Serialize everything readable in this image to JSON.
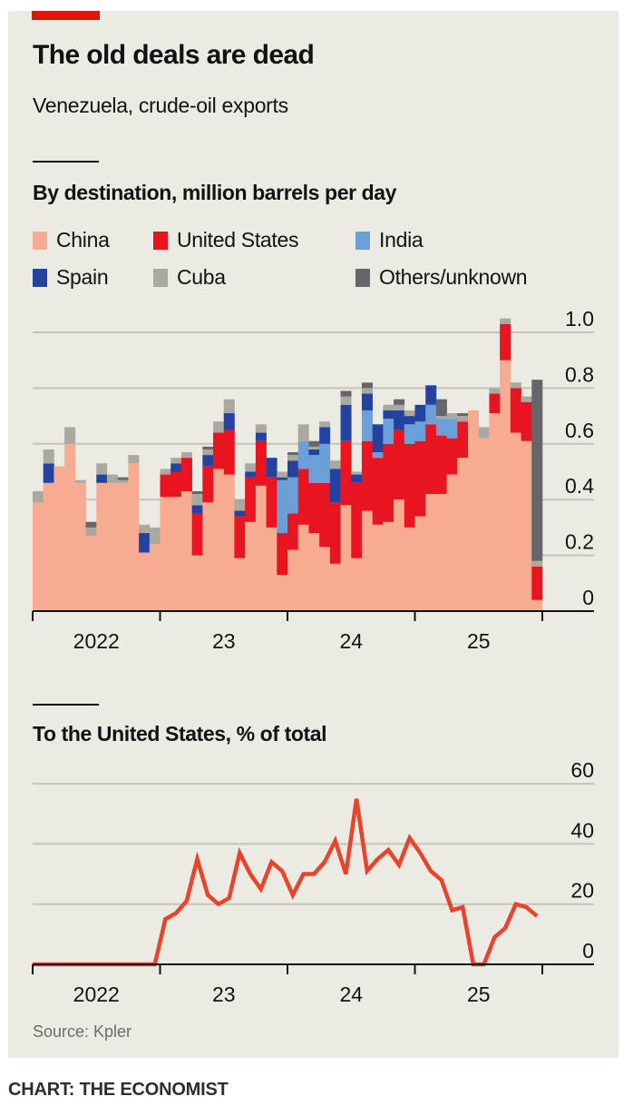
{
  "header": {
    "title": "The old deals are dead",
    "subtitle": "Venezuela, crude-oil exports"
  },
  "source": "Source: Kpler",
  "footer": "CHART: THE ECONOMIST",
  "chart_data": [
    {
      "type": "bar",
      "stacked": true,
      "title": "By destination, million barrels per day",
      "x_start": "2022-01",
      "x_end": "2025-12",
      "x_interval": "month",
      "xtick_labels": [
        "2022",
        "23",
        "24",
        "25"
      ],
      "ylim": [
        0,
        1.0
      ],
      "yticks": [
        0,
        0.2,
        0.4,
        0.6,
        0.8,
        1.0
      ],
      "ytick_labels": [
        "0",
        "0.2",
        "0.4",
        "0.6",
        "0.8",
        "1.0"
      ],
      "grid": true,
      "legend_placement": "top",
      "series": [
        {
          "name": "China",
          "color": "#f7ab91",
          "values": [
            0.39,
            0.46,
            0.52,
            0.6,
            0.46,
            0.27,
            0.46,
            0.46,
            0.46,
            0.53,
            0.21,
            0.24,
            0.41,
            0.41,
            0.43,
            0.2,
            0.39,
            0.51,
            0.49,
            0.19,
            0.32,
            0.45,
            0.3,
            0.13,
            0.22,
            0.31,
            0.28,
            0.23,
            0.17,
            0.38,
            0.19,
            0.36,
            0.31,
            0.32,
            0.4,
            0.3,
            0.34,
            0.42,
            0.42,
            0.49,
            0.55,
            0.72,
            0.62,
            0.71,
            0.9,
            0.64,
            0.61,
            0.04
          ]
        },
        {
          "name": "United States",
          "color": "#e8141f",
          "values": [
            0,
            0,
            0,
            0,
            0,
            0,
            0,
            0,
            0,
            0,
            0,
            0,
            0.08,
            0.09,
            0.12,
            0.15,
            0.13,
            0.13,
            0.16,
            0.15,
            0.16,
            0.16,
            0.18,
            0.15,
            0.13,
            0.2,
            0.18,
            0.23,
            0.22,
            0.23,
            0.27,
            0.25,
            0.24,
            0.28,
            0.25,
            0.3,
            0.27,
            0.25,
            0.21,
            0.13,
            0.13,
            0,
            0,
            0.07,
            0.13,
            0.16,
            0.14,
            0.12
          ]
        },
        {
          "name": "India",
          "color": "#6a9fd8",
          "values": [
            0,
            0,
            0,
            0,
            0,
            0,
            0,
            0,
            0,
            0,
            0,
            0,
            0,
            0,
            0,
            0,
            0,
            0,
            0,
            0,
            0,
            0,
            0,
            0.19,
            0.13,
            0.1,
            0.1,
            0.14,
            0,
            0,
            0,
            0.11,
            0.02,
            0.09,
            0,
            0.07,
            0.07,
            0.07,
            0.06,
            0.07,
            0,
            0,
            0,
            0,
            0,
            0,
            0,
            0
          ]
        },
        {
          "name": "Spain",
          "color": "#2443a0",
          "values": [
            0,
            0.07,
            0,
            0,
            0,
            0,
            0.03,
            0,
            0,
            0,
            0.07,
            0,
            0,
            0.03,
            0,
            0.03,
            0.04,
            0,
            0.06,
            0.02,
            0.02,
            0.03,
            0.07,
            0.01,
            0.06,
            0,
            0.02,
            0.06,
            0.12,
            0.13,
            0.03,
            0.06,
            0.1,
            0.03,
            0.07,
            0.03,
            0.06,
            0.07,
            0,
            0,
            0,
            0,
            0,
            0,
            0,
            0,
            0,
            0
          ]
        },
        {
          "name": "Cuba",
          "color": "#a9a99f",
          "values": [
            0.04,
            0.05,
            0,
            0.06,
            0.01,
            0.03,
            0.04,
            0.03,
            0.01,
            0.03,
            0.03,
            0.06,
            0.02,
            0.02,
            0.02,
            0.04,
            0.02,
            0.04,
            0.05,
            0.04,
            0.03,
            0.03,
            0,
            0.02,
            0.02,
            0.06,
            0.01,
            0.02,
            0.03,
            0.03,
            0.01,
            0.02,
            0,
            0.02,
            0.02,
            0.02,
            0,
            0,
            0.01,
            0.02,
            0.02,
            0,
            0.04,
            0.02,
            0.02,
            0.02,
            0.02,
            0.02
          ]
        },
        {
          "name": "Others/unknown",
          "color": "#65656a",
          "values": [
            0,
            0,
            0,
            0,
            0,
            0.02,
            0,
            0,
            0.01,
            0,
            0,
            0,
            0,
            0,
            0,
            0.01,
            0.01,
            0,
            0,
            0,
            0,
            0,
            0,
            0,
            0.01,
            0,
            0.02,
            0,
            0,
            0.02,
            0,
            0.02,
            0,
            0,
            0.02,
            0,
            0,
            0,
            0.06,
            0,
            0.01,
            0,
            0,
            0,
            0,
            0,
            0,
            0.65
          ]
        }
      ]
    },
    {
      "type": "line",
      "title": "To the United States, % of total",
      "x_start": "2022-01",
      "x_end": "2025-12",
      "x_interval": "month",
      "xtick_labels": [
        "2022",
        "23",
        "24",
        "25"
      ],
      "ylim": [
        0,
        60
      ],
      "yticks": [
        0,
        20,
        40,
        60
      ],
      "ytick_labels": [
        "0",
        "20",
        "40",
        "60"
      ],
      "grid": true,
      "color": "#e8432b",
      "values": [
        0,
        0,
        0,
        0,
        0,
        0,
        0,
        0,
        0,
        0,
        0,
        0,
        15,
        17,
        21,
        35,
        23,
        20,
        22,
        37,
        30,
        25,
        34,
        31,
        23,
        30,
        30,
        34,
        41,
        30,
        55,
        31,
        35,
        38,
        33,
        42,
        37,
        31,
        28,
        18,
        19,
        0,
        0,
        9,
        12,
        20,
        19,
        16
      ]
    }
  ]
}
